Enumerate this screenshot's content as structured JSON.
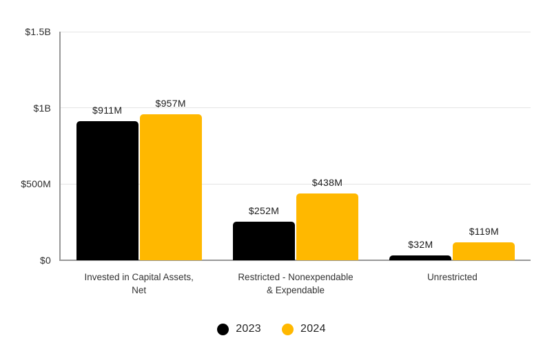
{
  "chart_data": {
    "type": "bar",
    "title": "",
    "unit": "USD",
    "categories": [
      "Invested in Capital Assets, Net",
      "Restricted - Nonexpendable & Expendable",
      "Unrestricted"
    ],
    "category_label_lines": [
      [
        "Invested in Capital Assets,",
        "Net"
      ],
      [
        "Restricted - Nonexpendable",
        "& Expendable"
      ],
      [
        "Unrestricted"
      ]
    ],
    "series": [
      {
        "name": "2023",
        "color": "#000000",
        "values": [
          911,
          252,
          32
        ],
        "labels": [
          "$911M",
          "$252M",
          "$32M"
        ]
      },
      {
        "name": "2024",
        "color": "#FFB800",
        "values": [
          957,
          438,
          119
        ],
        "labels": [
          "$957M",
          "$438M",
          "$119M"
        ]
      }
    ],
    "ylim": [
      0,
      1500
    ],
    "yticks": [
      {
        "value": 0,
        "label": "$0"
      },
      {
        "value": 500,
        "label": "$500M"
      },
      {
        "value": 1000,
        "label": "$1B"
      },
      {
        "value": 1500,
        "label": "$1.5B"
      }
    ],
    "grid": "horizontal",
    "legend_position": "bottom-center"
  }
}
